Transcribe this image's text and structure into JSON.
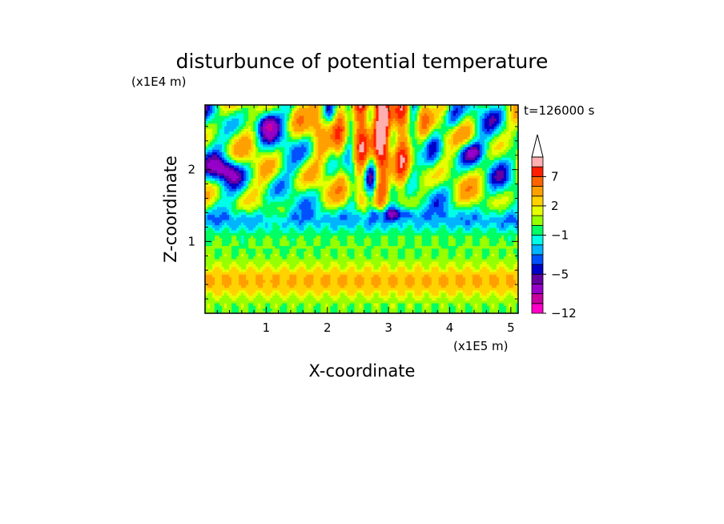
{
  "chart_data": {
    "type": "heatmap",
    "title": "disturbunce of potential temperature",
    "xlabel": "X-coordinate",
    "ylabel": "Z-coordinate",
    "x_unit": "(x1E5 m)",
    "y_unit": "(x1E4 m)",
    "time_label": "t=126000 s",
    "xlim": [
      0,
      5.12
    ],
    "ylim": [
      0,
      2.9
    ],
    "x_ticks": [
      1,
      2,
      3,
      4,
      5
    ],
    "y_ticks": [
      1,
      2
    ],
    "colorbar": {
      "levels": [
        -12,
        -10,
        -8,
        -6,
        -5,
        -4,
        -3,
        -2,
        -1,
        0,
        1,
        2,
        3,
        5,
        7,
        9,
        11
      ],
      "labeled_ticks": [
        -12,
        -5,
        -1,
        2,
        7
      ],
      "colors": [
        "#ff00c8",
        "#c800a0",
        "#9600c8",
        "#6400a0",
        "#0000c8",
        "#0050ff",
        "#00b4ff",
        "#00ffe6",
        "#00ff64",
        "#96ff00",
        "#e6ff00",
        "#ffd200",
        "#ffa000",
        "#ff6400",
        "#ff1e00",
        "#ffafaf"
      ],
      "overflow_arrow": "top"
    },
    "grid": false,
    "legend": "colorbar-right"
  },
  "glyph": {
    "x_unit_parts": [
      "(x1E5 m)"
    ],
    "y_unit_parts": [
      "(x1E4 m)"
    ]
  }
}
